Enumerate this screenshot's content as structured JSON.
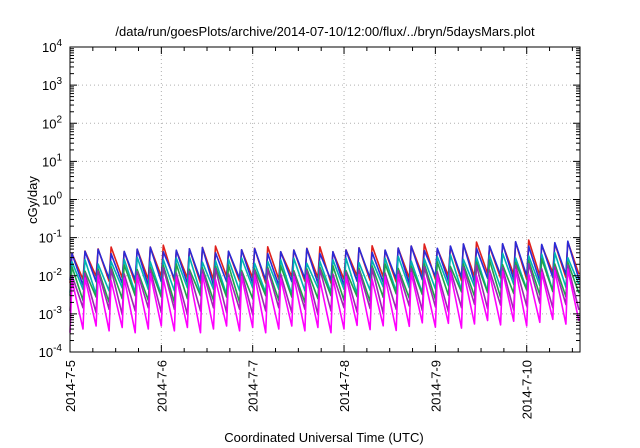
{
  "chart_data": {
    "type": "line",
    "title": "/data/run/goesPlots/archive/2014-07-10/12:00/flux/../bryn/5daysMars.plot",
    "xlabel": "Coordinated Universal Time (UTC)",
    "ylabel": "cGy/day",
    "yscale": "log",
    "ylim": [
      0.0001,
      10000
    ],
    "y_ticks": [
      {
        "base": "10",
        "exp": "4"
      },
      {
        "base": "10",
        "exp": "3"
      },
      {
        "base": "10",
        "exp": "2"
      },
      {
        "base": "10",
        "exp": "1"
      },
      {
        "base": "10",
        "exp": "0"
      },
      {
        "base": "10",
        "exp": "-1"
      },
      {
        "base": "10",
        "exp": "-2"
      },
      {
        "base": "10",
        "exp": "-3"
      },
      {
        "base": "10",
        "exp": "-4"
      }
    ],
    "x_start": "2014-07-05 00:00",
    "x_end": "2014-07-10 14:00",
    "x_ticks": [
      "2014-7-5",
      "2014-7-6",
      "2014-7-7",
      "2014-7-8",
      "2014-7-9",
      "2014-7-10"
    ],
    "grid": true,
    "cycles_per_day": 7,
    "series": [
      {
        "color": "#e0201c",
        "peak": [
          0.045,
          0.055,
          0.05,
          0.05,
          0.06,
          0.075
        ],
        "trough": [
          0.008,
          0.008,
          0.008,
          0.008,
          0.009,
          0.01
        ]
      },
      {
        "color": "#2a2ad8",
        "peak": [
          0.04,
          0.05,
          0.045,
          0.045,
          0.055,
          0.07
        ],
        "trough": [
          0.007,
          0.007,
          0.007,
          0.007,
          0.008,
          0.009
        ]
      },
      {
        "color": "#00b3b3",
        "peak": [
          0.022,
          0.028,
          0.025,
          0.025,
          0.03,
          0.035
        ],
        "trough": [
          0.004,
          0.004,
          0.004,
          0.004,
          0.0045,
          0.005
        ]
      },
      {
        "color": "#1fa34a",
        "peak": [
          0.015,
          0.018,
          0.016,
          0.016,
          0.02,
          0.024
        ],
        "trough": [
          0.0025,
          0.0025,
          0.0025,
          0.0025,
          0.003,
          0.0035
        ]
      },
      {
        "color": "#9c27b0",
        "peak": [
          0.012,
          0.014,
          0.013,
          0.013,
          0.015,
          0.018
        ],
        "trough": [
          0.0012,
          0.0012,
          0.0012,
          0.0012,
          0.0014,
          0.0016
        ]
      },
      {
        "color": "#ff00ff",
        "peak": [
          0.008,
          0.01,
          0.009,
          0.009,
          0.011,
          0.013
        ],
        "trough": [
          0.0004,
          0.0004,
          0.0004,
          0.0004,
          0.0005,
          0.0006
        ]
      }
    ]
  }
}
